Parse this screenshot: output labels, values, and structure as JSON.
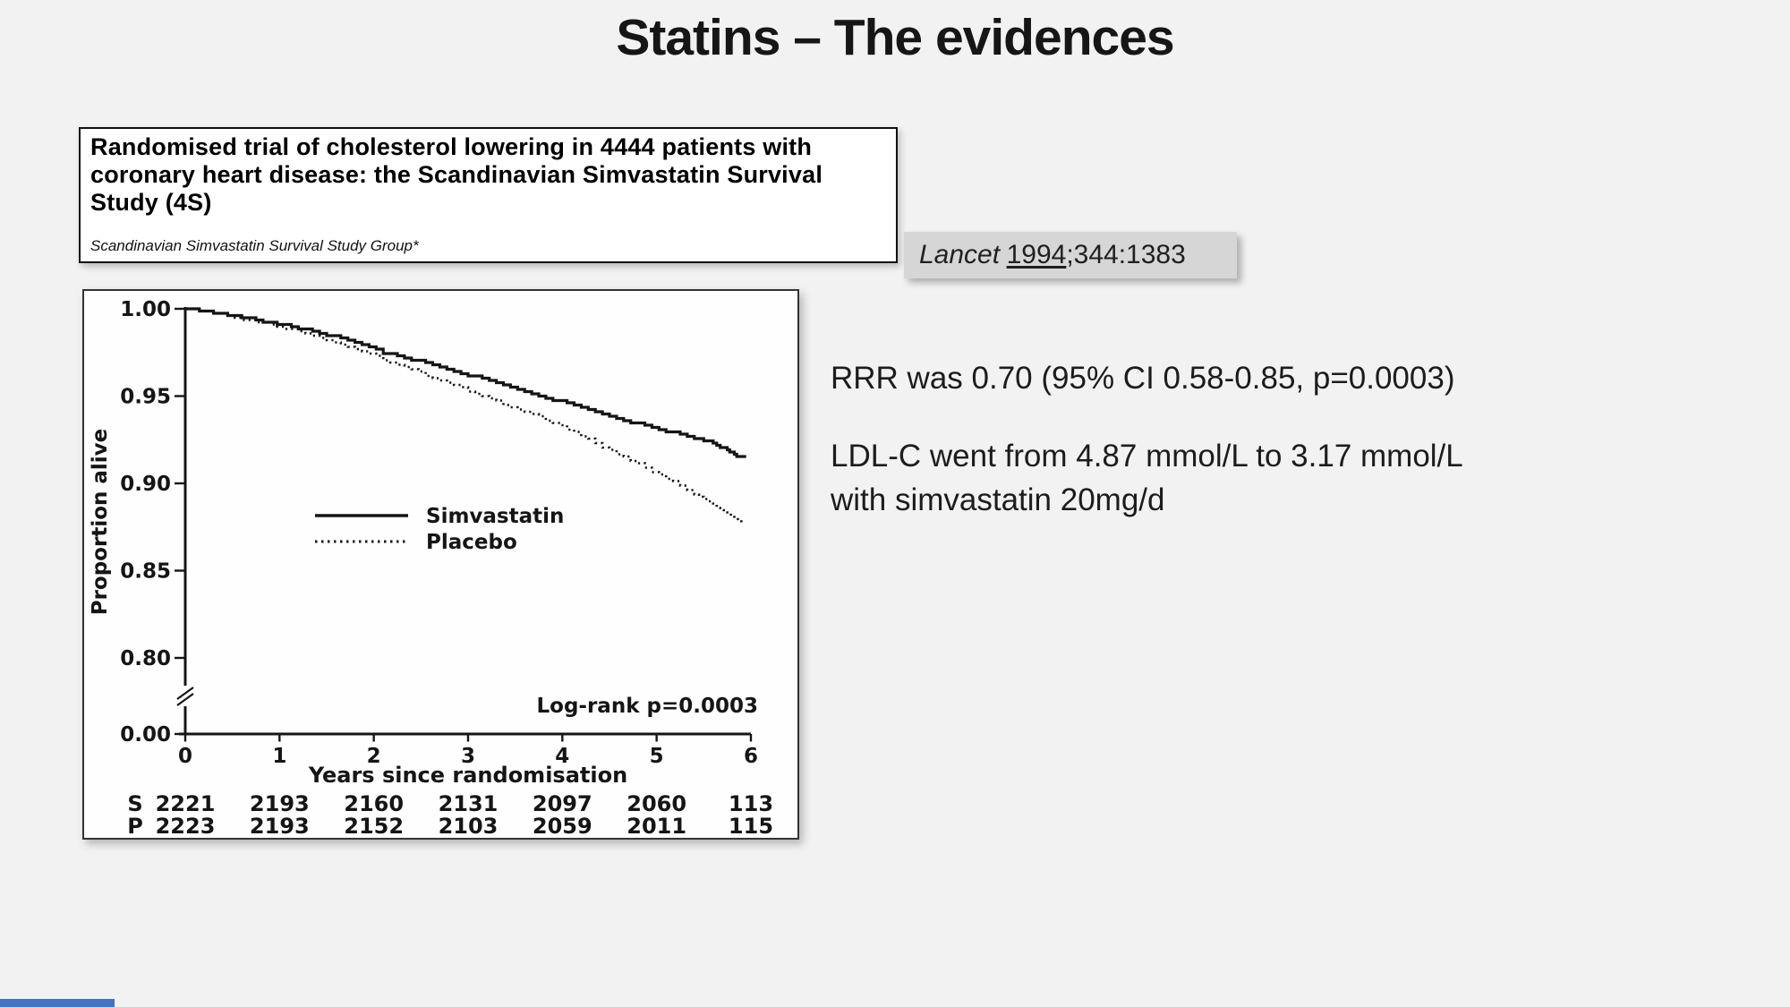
{
  "slide": {
    "title": "Statins – The evidences"
  },
  "colors": {
    "slide_background": "#f2f2f2",
    "citation_background": "#d6d6d6",
    "accent_bar": "#4472c4",
    "ink": "#151515"
  },
  "paper": {
    "title": "Randomised trial of cholesterol lowering in 4444 patients with coronary heart disease: the Scandinavian Simvastatin Survival Study (4S)",
    "authors": "Scandinavian Simvastatin Survival Study Group*"
  },
  "citation": {
    "journal": "Lancet",
    "year": "1994",
    "rest": ";344:1383"
  },
  "findings": {
    "rrr": "RRR was 0.70 (95% CI 0.58-0.85, p=0.0003)",
    "ldl_line1": "LDL-C went from 4.87 mmol/L to 3.17 mmol/L",
    "ldl_line2": "with simvastatin 20mg/d"
  },
  "chart_data": {
    "type": "line",
    "title": "",
    "xlabel": "Years since randomisation",
    "ylabel": "Proportion alive",
    "x_ticks": [
      0,
      1,
      2,
      3,
      4,
      5,
      6
    ],
    "y_ticks": [
      1.0,
      0.95,
      0.9,
      0.85,
      0.8,
      0.0
    ],
    "y_axis_break": true,
    "xlim": [
      0,
      6
    ],
    "ylim_top_segment": [
      0.8,
      1.0
    ],
    "grid": false,
    "legend_position": "center-left inside plot",
    "annotation": "Log-rank p=0.0003",
    "series": [
      {
        "name": "Simvastatin",
        "style": "solid",
        "x": [
          0,
          0.3,
          0.6,
          0.9,
          1.2,
          1.5,
          1.8,
          2.1,
          2.4,
          2.7,
          3.0,
          3.3,
          3.6,
          3.9,
          4.2,
          4.5,
          4.8,
          5.1,
          5.4,
          5.6,
          5.75,
          5.85,
          5.95
        ],
        "y": [
          1.0,
          0.998,
          0.995,
          0.992,
          0.989,
          0.985,
          0.981,
          0.975,
          0.971,
          0.967,
          0.962,
          0.958,
          0.953,
          0.948,
          0.944,
          0.938,
          0.934,
          0.93,
          0.926,
          0.923,
          0.919,
          0.916,
          0.916
        ]
      },
      {
        "name": "Placebo",
        "style": "dotted",
        "x": [
          0,
          0.3,
          0.6,
          0.9,
          1.2,
          1.5,
          1.8,
          2.1,
          2.4,
          2.7,
          3.0,
          3.3,
          3.6,
          3.9,
          4.2,
          4.5,
          4.8,
          5.1,
          5.4,
          5.6,
          5.75,
          5.9
        ],
        "y": [
          1.0,
          0.998,
          0.994,
          0.991,
          0.987,
          0.982,
          0.977,
          0.971,
          0.965,
          0.959,
          0.953,
          0.947,
          0.941,
          0.935,
          0.927,
          0.919,
          0.911,
          0.903,
          0.894,
          0.888,
          0.882,
          0.877
        ]
      }
    ],
    "at_risk": {
      "rows": [
        {
          "label": "S",
          "counts": [
            2221,
            2193,
            2160,
            2131,
            2097,
            2060,
            113
          ]
        },
        {
          "label": "P",
          "counts": [
            2223,
            2193,
            2152,
            2103,
            2059,
            2011,
            115
          ]
        }
      ]
    }
  }
}
